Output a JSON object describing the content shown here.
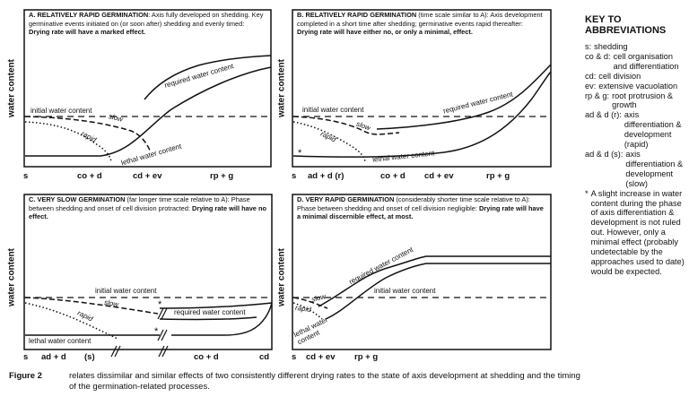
{
  "figure": {
    "y_axis_label": "water content",
    "panel_a": {
      "letter": "A.",
      "heading": "RELATIVELY RAPID GERMINATION",
      "body": ": Axis fully developed on shedding. Key germinative events initiated on (or soon after) shedding and evenly timed:",
      "effect": "Drying rate will have a marked effect.",
      "curve_required": "required water content",
      "curve_initial": "initial water content",
      "curve_slow": "slow",
      "curve_rapid": "rapid",
      "curve_lethal": "lethal water content",
      "axis_ticks": [
        "s",
        "co + d",
        "cd + ev",
        "rp + g"
      ]
    },
    "panel_b": {
      "letter": "B.",
      "heading": "RELATIVELY RAPID GERMINATION",
      "body": " (time scale similar to A): Axis development completed in a short time after shedding; germinative events rapid thereafter:",
      "effect": "Drying rate will have either no, or only a minimal, effect.",
      "curve_required": "required water content",
      "curve_initial": "initial water content",
      "curve_slow": "slow",
      "curve_rapid": "rapid",
      "curve_lethal": "lethal water content",
      "asterisk": "*",
      "axis_ticks": [
        "s",
        "ad + d (r)",
        "co + d",
        "cd + ev",
        "rp + g"
      ]
    },
    "panel_c": {
      "letter": "C.",
      "heading": "VERY SLOW GERMINATION",
      "body": " (far longer time scale relative to A): Phase between shedding and onset of cell division protracted:",
      "effect": "Drying rate will have no effect.",
      "curve_required": "required water content",
      "curve_initial": "initial water content",
      "curve_slow": "slow",
      "curve_rapid": "rapid",
      "curve_lethal": "lethal water content",
      "asterisk": "*",
      "axis_ticks": [
        "s",
        "ad + d",
        "(s)",
        "co + d",
        "cd"
      ]
    },
    "panel_d": {
      "letter": "D.",
      "heading": "VERY RAPID GERMINATION",
      "body": " (considerably shorter time scale relative to A): Phase between shedding and onset of cell division negligible:",
      "effect": "Drying rate will have a minimal discernible effect, at most.",
      "curve_required": "required water content",
      "curve_initial": "initial water content",
      "curve_slow": "slow",
      "curve_rapid": "rapid",
      "curve_lethal": "lethal water content",
      "axis_ticks": [
        "s",
        "cd + ev",
        "rp + g"
      ]
    }
  },
  "key": {
    "title_line1": "KEY TO",
    "title_line2": "ABBREVIATIONS",
    "items": [
      {
        "abbr": "s:",
        "def": "shedding"
      },
      {
        "abbr": "co & d:",
        "def": "cell organisation and differentiation"
      },
      {
        "abbr": "cd:",
        "def": "cell division"
      },
      {
        "abbr": "ev:",
        "def": "extensive vacuolation"
      },
      {
        "abbr": "rp & g:",
        "def": "root protrusion & growth"
      },
      {
        "abbr": "ad & d (r):",
        "def": "axis differentiation & development (rapid)"
      },
      {
        "abbr": "ad & d (s):",
        "def": "axis differentiation & development (slow)"
      },
      {
        "abbr": "*",
        "def": "A slight increase in water content during the phase of axis differentiation & development is not ruled out. However, only a minimal effect (probably undetectable by the approaches used to date) would be expected."
      }
    ]
  },
  "caption": {
    "label": "Figure 2",
    "text": "relates dissimilar and similar effects of two consistently different drying rates to the state of axis development at shedding and the timing of the germination-related processes."
  }
}
